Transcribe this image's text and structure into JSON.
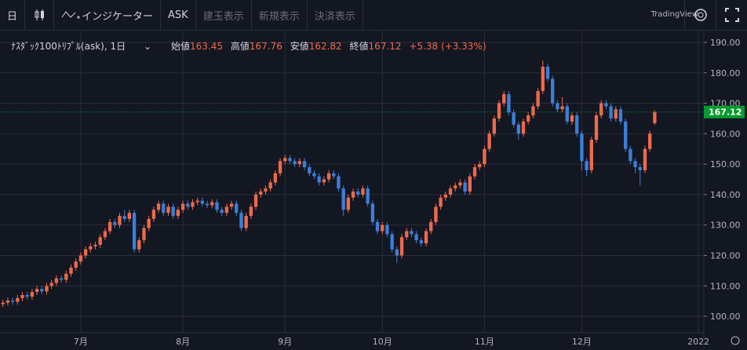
{
  "toolbar": {
    "interval": "日",
    "indicators": "インジケーター",
    "ask": "ASK",
    "buttons": [
      "建玉表示",
      "新規表示",
      "決済表示"
    ],
    "brand": "TradingView"
  },
  "legend": {
    "symbol": "ﾅｽﾀﾞｯｸ100ﾄﾘﾌﾟﾙ(ask), 1日",
    "open_label": "始値",
    "high_label": "高値",
    "low_label": "安値",
    "close_label": "終値",
    "change": "+5.38 (+3.33%)"
  },
  "chart_data": {
    "type": "candlestick",
    "up_color": "#f0694a",
    "down_color": "#3b7fd9",
    "grid": true,
    "ylim": [
      92.3,
      193.6
    ],
    "yticks": [
      {
        "value": 100,
        "label": "100.00"
      },
      {
        "value": 110,
        "label": "110.00"
      },
      {
        "value": 120,
        "label": "120.00"
      },
      {
        "value": 130,
        "label": "130.00"
      },
      {
        "value": 140,
        "label": "140.00"
      },
      {
        "value": 150,
        "label": "150.00"
      },
      {
        "value": 160,
        "label": "160.00"
      },
      {
        "value": 170,
        "label": "170.00"
      },
      {
        "value": 180,
        "label": "180.00"
      },
      {
        "value": 190,
        "label": "190.00"
      }
    ],
    "xlim": [
      -0.6,
      144.1
    ],
    "xticks": [
      {
        "value": 16,
        "label": "7月"
      },
      {
        "value": 37,
        "label": "8月"
      },
      {
        "value": 58,
        "label": "9月"
      },
      {
        "value": 78,
        "label": "10月"
      },
      {
        "value": 99,
        "label": "11月"
      },
      {
        "value": 119,
        "label": "12月"
      },
      {
        "value": 143,
        "label": "2022"
      }
    ],
    "open": [
      104,
      104.5,
      105.2,
      104.8,
      106,
      107,
      106.5,
      108,
      109,
      108.2,
      110,
      111,
      112.5,
      112,
      114,
      116,
      118,
      120,
      122,
      123,
      123.5,
      126,
      128,
      131,
      130,
      133,
      132,
      134,
      122,
      125,
      129,
      132,
      135,
      137,
      134,
      136,
      133,
      135,
      137,
      136,
      137.5,
      138,
      137,
      136.5,
      137.5,
      135,
      134,
      136,
      137,
      134,
      129,
      133,
      136,
      140,
      141,
      142,
      144,
      147,
      151,
      152,
      151,
      150,
      151,
      149,
      147,
      146,
      144,
      145,
      147,
      146,
      142,
      135,
      139,
      141,
      140,
      142,
      137,
      131,
      128,
      130,
      127,
      122,
      120,
      126,
      128,
      127,
      125,
      124,
      128,
      131,
      136,
      139,
      140,
      142,
      143,
      144,
      141,
      146,
      149,
      150,
      155,
      160,
      165,
      170,
      173,
      167,
      163,
      160,
      164,
      166,
      169,
      174,
      182,
      178,
      170,
      168,
      169,
      164,
      166,
      160,
      151,
      148,
      158,
      166,
      170,
      169,
      165,
      168,
      164,
      155,
      151,
      149,
      148,
      155,
      163.45
    ],
    "high": [
      105.5,
      106.2,
      106.2,
      107,
      108,
      108,
      109,
      110,
      110,
      111,
      112,
      113.5,
      113.5,
      115,
      117,
      119,
      121,
      123,
      124,
      124.5,
      127,
      129,
      132,
      132,
      134,
      135,
      135,
      135,
      126,
      130,
      133,
      136,
      138,
      138,
      137,
      137,
      136,
      138,
      138,
      138.5,
      139,
      139,
      138,
      138.5,
      138.5,
      136,
      137,
      138,
      138,
      135,
      134,
      137,
      141,
      142,
      143,
      145,
      148,
      152,
      153,
      153,
      152,
      152,
      152,
      150,
      148,
      147,
      146,
      148,
      148,
      147,
      143,
      140,
      142,
      142,
      143,
      143,
      138,
      132,
      131,
      131,
      128,
      123,
      127,
      129,
      129,
      128,
      126,
      129,
      132,
      137,
      140,
      141,
      143,
      144,
      145,
      145,
      147,
      150,
      151,
      156,
      161,
      166,
      171,
      174,
      174,
      168,
      164,
      165,
      167,
      170,
      175,
      184,
      183,
      179,
      171,
      172,
      170,
      167,
      167,
      161,
      152,
      159,
      167,
      171,
      171,
      170,
      169,
      169,
      165,
      156,
      152,
      150,
      156,
      161,
      167.76
    ],
    "low": [
      103,
      103.5,
      103.8,
      103.8,
      105,
      105.5,
      105.5,
      107,
      107.2,
      107.2,
      109,
      110,
      111,
      111,
      113,
      115,
      117,
      119,
      121,
      122,
      122.5,
      125,
      127,
      129,
      129,
      131,
      131,
      121,
      121,
      124,
      128,
      131,
      134,
      133,
      133,
      132,
      132,
      134,
      135,
      135,
      136.5,
      136,
      135.5,
      135.5,
      134,
      133,
      133,
      135,
      133,
      128,
      128,
      132,
      135,
      139,
      140,
      141,
      143,
      146,
      150,
      150,
      149,
      149,
      148,
      146,
      145,
      143,
      143,
      144,
      145,
      141,
      133,
      134,
      138,
      139,
      139,
      136,
      130,
      127,
      127,
      126,
      121,
      117.5,
      119,
      125,
      126,
      124,
      123,
      123,
      127,
      130,
      135,
      138,
      139,
      141,
      142,
      140,
      140,
      145,
      148,
      149,
      154,
      159,
      164,
      169,
      166,
      162,
      158,
      159,
      163,
      165,
      168,
      173,
      177,
      169,
      167,
      167,
      163,
      163,
      159,
      148,
      146,
      147,
      157,
      165,
      168,
      164,
      164,
      163,
      154,
      150,
      147,
      143,
      147,
      154,
      162.82
    ],
    "close": [
      104.5,
      105.2,
      104.8,
      106,
      107,
      106.5,
      108,
      109,
      108.2,
      110,
      111,
      112.5,
      112,
      114,
      116,
      118,
      120,
      122,
      123,
      123.5,
      126,
      128,
      131,
      130,
      133,
      132,
      134,
      122,
      125,
      129,
      132,
      135,
      137,
      134,
      136,
      133,
      135,
      137,
      136,
      137.5,
      138,
      137,
      136.5,
      137.5,
      135,
      134,
      136,
      137,
      134,
      129,
      133,
      136,
      140,
      141,
      142,
      144,
      147,
      151,
      152,
      151,
      150,
      151,
      149,
      147,
      146,
      144,
      145,
      147,
      146,
      142,
      135,
      139,
      141,
      140,
      142,
      137,
      131,
      128,
      130,
      127,
      122,
      120,
      126,
      128,
      127,
      125,
      124,
      128,
      131,
      136,
      139,
      140,
      142,
      143,
      144,
      141,
      146,
      149,
      150,
      155,
      160,
      165,
      170,
      173,
      167,
      163,
      160,
      164,
      166,
      169,
      174,
      182,
      178,
      170,
      168,
      169,
      164,
      166,
      160,
      151,
      148,
      158,
      166,
      170,
      169,
      165,
      168,
      164,
      155,
      151,
      149,
      148,
      155,
      160,
      167.12
    ],
    "last_color": "#089a2f"
  }
}
